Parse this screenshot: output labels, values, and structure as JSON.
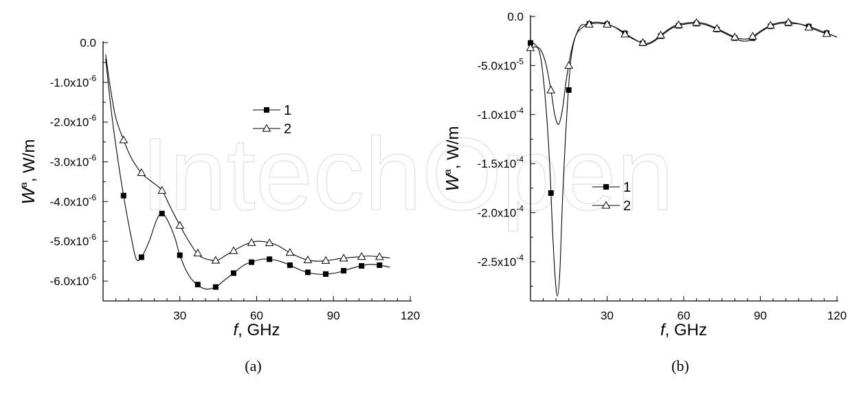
{
  "watermark_text": "IntechOpen",
  "chart_data": [
    {
      "type": "line",
      "panel_label": "(a)",
      "xlabel_italic": "f",
      "xlabel_rest": ",  GHz",
      "ylabel_italic": "W",
      "ylabel_sup": "a",
      "ylabel_rest": ", W/m",
      "xlim": [
        0,
        120
      ],
      "ylim": [
        -6.5e-06,
        0
      ],
      "x_ticks": [
        30,
        60,
        90,
        120
      ],
      "y_ticks": [
        {
          "value": 0,
          "mant": "0.0",
          "exp": ""
        },
        {
          "value": -1e-06,
          "mant": "-1.0x10",
          "exp": "-6"
        },
        {
          "value": -2e-06,
          "mant": "-2.0x10",
          "exp": "-6"
        },
        {
          "value": -3e-06,
          "mant": "-3.0x10",
          "exp": "-6"
        },
        {
          "value": -4e-06,
          "mant": "-4.0x10",
          "exp": "-6"
        },
        {
          "value": -5e-06,
          "mant": "-5.0x10",
          "exp": "-6"
        },
        {
          "value": -6e-06,
          "mant": "-6.0x10",
          "exp": "-6"
        }
      ],
      "grid": false,
      "legend_position": "center-right",
      "series": [
        {
          "name": "1",
          "marker": "filled-square",
          "x": [
            1,
            3,
            5,
            8,
            11,
            13,
            15,
            18,
            21,
            23,
            25,
            28,
            30,
            33,
            36,
            40,
            44,
            47,
            51,
            55,
            59,
            62,
            65,
            69,
            73,
            77,
            81,
            85,
            88,
            92,
            96,
            100,
            104,
            108,
            112
          ],
          "y": [
            -4e-07,
            -1.6e-06,
            -2.6e-06,
            -3.85e-06,
            -4.9e-06,
            -5.45e-06,
            -5.4e-06,
            -5e-06,
            -4.45e-06,
            -4.3e-06,
            -4.45e-06,
            -4.9e-06,
            -5.35e-06,
            -5.8e-06,
            -6.05e-06,
            -6.2e-06,
            -6.15e-06,
            -6e-06,
            -5.8e-06,
            -5.6e-06,
            -5.5e-06,
            -5.45e-06,
            -5.45e-06,
            -5.5e-06,
            -5.6e-06,
            -5.72e-06,
            -5.8e-06,
            -5.83e-06,
            -5.82e-06,
            -5.78e-06,
            -5.7e-06,
            -5.63e-06,
            -5.58e-06,
            -5.6e-06,
            -5.65e-06
          ],
          "marker_x": [
            8,
            15,
            23,
            30,
            37,
            44,
            51,
            58,
            65,
            73,
            80,
            87,
            94,
            101,
            108
          ]
        },
        {
          "name": "2",
          "marker": "open-triangle",
          "x": [
            1,
            3,
            5,
            8,
            11,
            14,
            16,
            19,
            23,
            26,
            30,
            34,
            38,
            44,
            48,
            52,
            56,
            60,
            64,
            68,
            72,
            76,
            80,
            84,
            88,
            92,
            96,
            100,
            104,
            108,
            112
          ],
          "y": [
            -3e-07,
            -1.2e-06,
            -1.9e-06,
            -2.45e-06,
            -2.9e-06,
            -3.2e-06,
            -3.35e-06,
            -3.5e-06,
            -3.72e-06,
            -4.1e-06,
            -4.6e-06,
            -5.05e-06,
            -5.38e-06,
            -5.48e-06,
            -5.35e-06,
            -5.2e-06,
            -5.07e-06,
            -5e-06,
            -5.02e-06,
            -5.1e-06,
            -5.25e-06,
            -5.38e-06,
            -5.47e-06,
            -5.5e-06,
            -5.48e-06,
            -5.44e-06,
            -5.41e-06,
            -5.39e-06,
            -5.37e-06,
            -5.39e-06,
            -5.42e-06
          ],
          "marker_x": [
            8,
            15,
            23,
            30,
            37,
            44,
            51,
            58,
            65,
            73,
            80,
            87,
            94,
            101,
            108
          ]
        }
      ]
    },
    {
      "type": "line",
      "panel_label": "(b)",
      "xlabel_italic": "f",
      "xlabel_rest": ",  GHz",
      "ylabel_italic": "W",
      "ylabel_sup": "a",
      "ylabel_rest": ", W/m",
      "xlim": [
        0,
        120
      ],
      "ylim": [
        -0.00029,
        0
      ],
      "x_ticks": [
        30,
        60,
        90,
        120
      ],
      "y_ticks": [
        {
          "value": 0,
          "mant": "0.0",
          "exp": ""
        },
        {
          "value": -5e-05,
          "mant": "-5.0x10",
          "exp": "-5"
        },
        {
          "value": -0.0001,
          "mant": "-1.0x10",
          "exp": "-4"
        },
        {
          "value": -0.00015,
          "mant": "-1.5x10",
          "exp": "-4"
        },
        {
          "value": -0.0002,
          "mant": "-2.0x10",
          "exp": "-4"
        },
        {
          "value": -0.00025,
          "mant": "-2.5x10",
          "exp": "-4"
        }
      ],
      "grid": false,
      "legend_position": "center-left",
      "series": [
        {
          "name": "1",
          "marker": "filled-square",
          "x": [
            0,
            2,
            4,
            6,
            7.5,
            8.5,
            9.5,
            10.5,
            11.5,
            12.5,
            14,
            16,
            19,
            22,
            26,
            30,
            34,
            38,
            42,
            45,
            48,
            52,
            56,
            60,
            64,
            68,
            72,
            76,
            80,
            83,
            86,
            90,
            94,
            98,
            102,
            106,
            110,
            114,
            118,
            120
          ],
          "y": [
            -2.7e-05,
            -2.9e-05,
            -4.2e-05,
            -9e-05,
            -0.00015,
            -0.00021,
            -0.00026,
            -0.000285,
            -0.00026,
            -0.00019,
            -0.00011,
            -4e-05,
            -1.2e-05,
            -8e-06,
            -7e-06,
            -8e-06,
            -1.2e-05,
            -1.9e-05,
            -2.5e-05,
            -2.85e-05,
            -2.6e-05,
            -1.8e-05,
            -1.1e-05,
            -8e-06,
            -7e-06,
            -8e-06,
            -1.2e-05,
            -1.7e-05,
            -2.2e-05,
            -2.5e-05,
            -2.4e-05,
            -1.6e-05,
            -1e-05,
            -7e-06,
            -7e-06,
            -8e-06,
            -1.1e-05,
            -1.5e-05,
            -1.9e-05,
            -2.1e-05
          ],
          "marker_x": [
            0,
            8,
            15,
            23,
            30,
            37,
            44,
            51,
            58,
            65,
            73,
            80,
            87,
            94,
            101,
            109,
            116
          ]
        },
        {
          "name": "2",
          "marker": "open-triangle",
          "x": [
            0,
            2,
            4,
            6,
            8,
            9.5,
            11,
            12.5,
            14,
            16,
            18,
            21,
            25,
            29,
            33,
            37,
            41,
            45,
            48,
            52,
            56,
            60,
            64,
            68,
            72,
            76,
            80,
            83,
            86,
            90,
            94,
            98,
            102,
            106,
            110,
            114,
            118,
            120
          ],
          "y": [
            -3.2e-05,
            -3.1e-05,
            -3.4e-05,
            -4.8e-05,
            -7.5e-05,
            -0.0001,
            -0.00011,
            -9.5e-05,
            -6.5e-05,
            -3.5e-05,
            -1.8e-05,
            -1e-05,
            -6e-06,
            -7e-06,
            -1.1e-05,
            -1.8e-05,
            -2.4e-05,
            -2.75e-05,
            -2.5e-05,
            -1.7e-05,
            -1e-05,
            -7e-06,
            -6e-06,
            -7e-06,
            -1.1e-05,
            -1.6e-05,
            -2.1e-05,
            -2.3e-05,
            -2.2e-05,
            -1.5e-05,
            -9e-06,
            -6e-06,
            -6e-06,
            -8e-06,
            -1.2e-05,
            -1.6e-05,
            -1.9e-05,
            -2.1e-05
          ],
          "marker_x": [
            0,
            8,
            15,
            23,
            30,
            37,
            44,
            51,
            58,
            65,
            73,
            80,
            87,
            94,
            101,
            109,
            116
          ]
        }
      ]
    }
  ]
}
